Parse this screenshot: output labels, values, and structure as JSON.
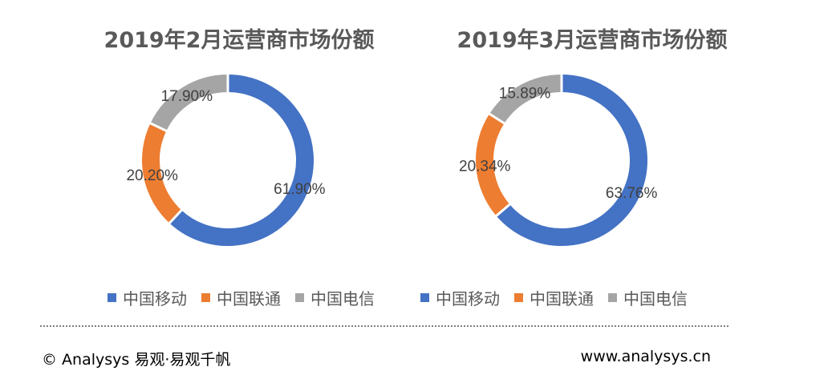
{
  "chart_data": [
    {
      "type": "pie",
      "title": "2019年2月运营商市场份额",
      "categories": [
        "中国移动",
        "中国联通",
        "中国电信"
      ],
      "values": [
        61.9,
        20.2,
        17.9
      ],
      "labels": [
        "61.90%",
        "20.20%",
        "17.90%"
      ],
      "colors": [
        "#4472C4",
        "#ED7D31",
        "#A5A5A5"
      ],
      "donut": true,
      "legend_position": "bottom"
    },
    {
      "type": "pie",
      "title": "2019年3月运营商市场份额",
      "categories": [
        "中国移动",
        "中国联通",
        "中国电信"
      ],
      "values": [
        63.76,
        20.34,
        15.89
      ],
      "labels": [
        "63.76%",
        "20.34%",
        "15.89%"
      ],
      "colors": [
        "#4472C4",
        "#ED7D31",
        "#A5A5A5"
      ],
      "donut": true,
      "legend_position": "bottom"
    }
  ],
  "footer": {
    "source": "© Analysys 易观·易观千帆",
    "website": "www.analysys.cn"
  }
}
